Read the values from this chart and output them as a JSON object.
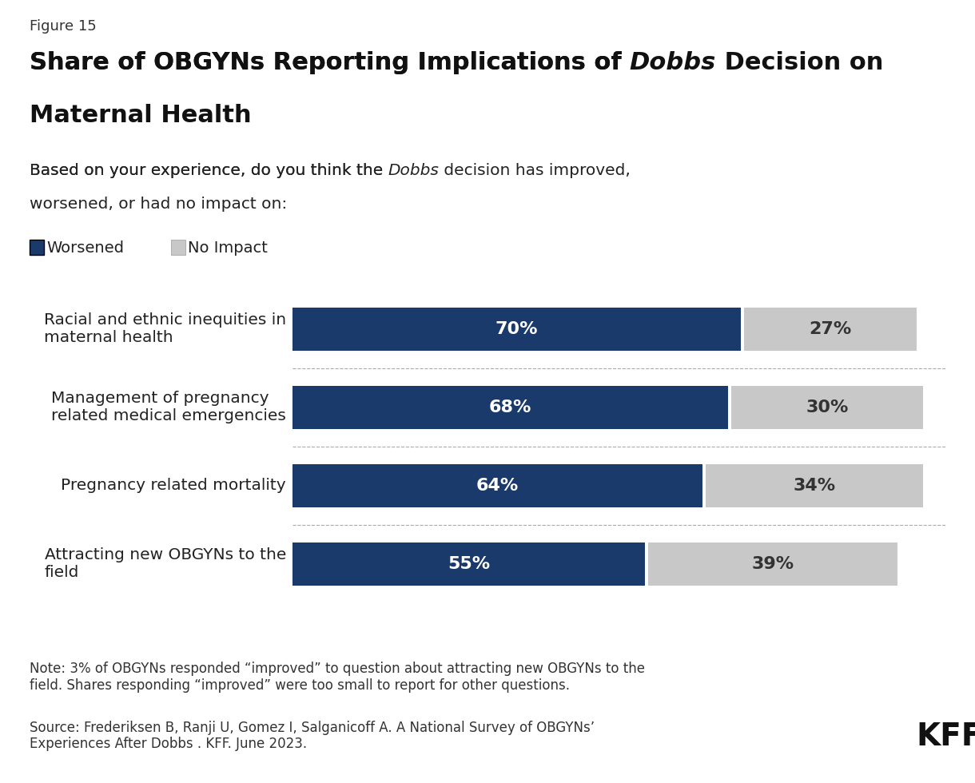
{
  "figure_label": "Figure 15",
  "title_parts": [
    {
      "text": "Share of OBGYNs Reporting Implications of ",
      "bold": true,
      "italic": false
    },
    {
      "text": "Dobbs",
      "bold": true,
      "italic": true
    },
    {
      "text": " Decision on\nMaternal Health",
      "bold": true,
      "italic": false
    }
  ],
  "subtitle": "Based on your experience, do you think the Dobbs decision has improved,\nworsened, or had no impact on:",
  "subtitle_italic_word": "Dobbs",
  "legend": [
    {
      "label": "Worsened",
      "color": "#1a3a6b"
    },
    {
      "label": "No Impact",
      "color": "#c8c8c8"
    }
  ],
  "categories": [
    "Racial and ethnic inequities in\nmaternal health",
    "Management of pregnancy\nrelated medical emergencies",
    "Pregnancy related mortality",
    "Attracting new OBGYNs to the\nfield"
  ],
  "worsened": [
    70,
    68,
    64,
    55
  ],
  "no_impact": [
    27,
    30,
    34,
    39
  ],
  "worsened_color": "#1a3a6b",
  "no_impact_color": "#c8c8c8",
  "bar_text_color_worsened": "#ffffff",
  "bar_text_color_no_impact": "#333333",
  "background_color": "#ffffff",
  "note": "Note: 3% of OBGYNs responded “improved” to question about attracting new OBGYNs to the\nfield. Shares responding “improved” were too small to report for other questions.",
  "source": "Source: Frederiksen B, Ranji U, Gomez I, Salganicoff A. A National Survey of OBGYNs’\nExperiences After Dobbs . KFF. June 2023.",
  "kff_text": "KFF",
  "bar_height": 0.55,
  "xlim": [
    0,
    100
  ],
  "figsize": [
    12.2,
    9.8
  ],
  "dpi": 100
}
